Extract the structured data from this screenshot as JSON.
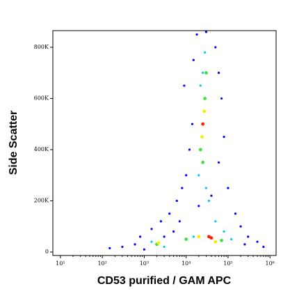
{
  "chart_data": {
    "type": "scatter",
    "xlabel": "CD53 purified / GAM APC",
    "ylabel": "Side Scatter",
    "xscale": "log",
    "xlim": [
      6.6,
      1400000
    ],
    "ylim": [
      -13600,
      865000
    ],
    "xticks": [
      {
        "value": 10,
        "label": "10¹"
      },
      {
        "value": 100,
        "label": "10²"
      },
      {
        "value": 1000,
        "label": "10³"
      },
      {
        "value": 10000,
        "label": "10⁴"
      },
      {
        "value": 100000,
        "label": "10⁵"
      },
      {
        "value": 1000000,
        "label": "10⁶"
      }
    ],
    "yticks": [
      0,
      {
        "value": 200000,
        "label": "200K"
      },
      {
        "value": 400000,
        "label": "400K"
      },
      {
        "value": 600000,
        "label": "600K"
      },
      {
        "value": 800000,
        "label": "800K"
      }
    ],
    "series": [
      {
        "color": "#0000ff",
        "x": [
          300,
          600,
          800,
          1500,
          2500,
          4000,
          6000,
          8000,
          10000,
          12000,
          14000,
          9000,
          15000,
          18000,
          50000,
          60000,
          70000,
          80000,
          60000,
          100000,
          150000,
          200000,
          300000,
          500000,
          700000,
          3000,
          5000,
          20000,
          40000,
          1000,
          150,
          30000,
          7000,
          250000
        ],
        "values": [
          20000,
          30000,
          60000,
          90000,
          120000,
          150000,
          200000,
          250000,
          300000,
          400000,
          500000,
          650000,
          750000,
          850000,
          800000,
          700000,
          600000,
          450000,
          350000,
          250000,
          150000,
          100000,
          60000,
          40000,
          20000,
          60000,
          80000,
          180000,
          220000,
          10000,
          15000,
          860000,
          120000,
          30000
        ]
      },
      {
        "color": "#00c8ff",
        "x": [
          20000,
          30000,
          35000,
          25000,
          28000,
          22000,
          1500,
          3000,
          80000,
          120000,
          15000,
          50000
        ],
        "values": [
          300000,
          250000,
          200000,
          700000,
          780000,
          650000,
          40000,
          20000,
          80000,
          50000,
          60000,
          120000
        ]
      },
      {
        "color": "#40e040",
        "x": [
          22000,
          28000,
          25000,
          2000,
          10000,
          70000,
          30000
        ],
        "values": [
          400000,
          600000,
          350000,
          30000,
          50000,
          45000,
          700000
        ]
      },
      {
        "color": "#f0f000",
        "x": [
          24000,
          27000,
          20000,
          50000,
          2200
        ],
        "values": [
          450000,
          550000,
          60000,
          40000,
          35000
        ]
      },
      {
        "color": "#ff2000",
        "x": [
          25000,
          40000,
          35000
        ],
        "values": [
          500000,
          55000,
          60000
        ]
      }
    ]
  }
}
